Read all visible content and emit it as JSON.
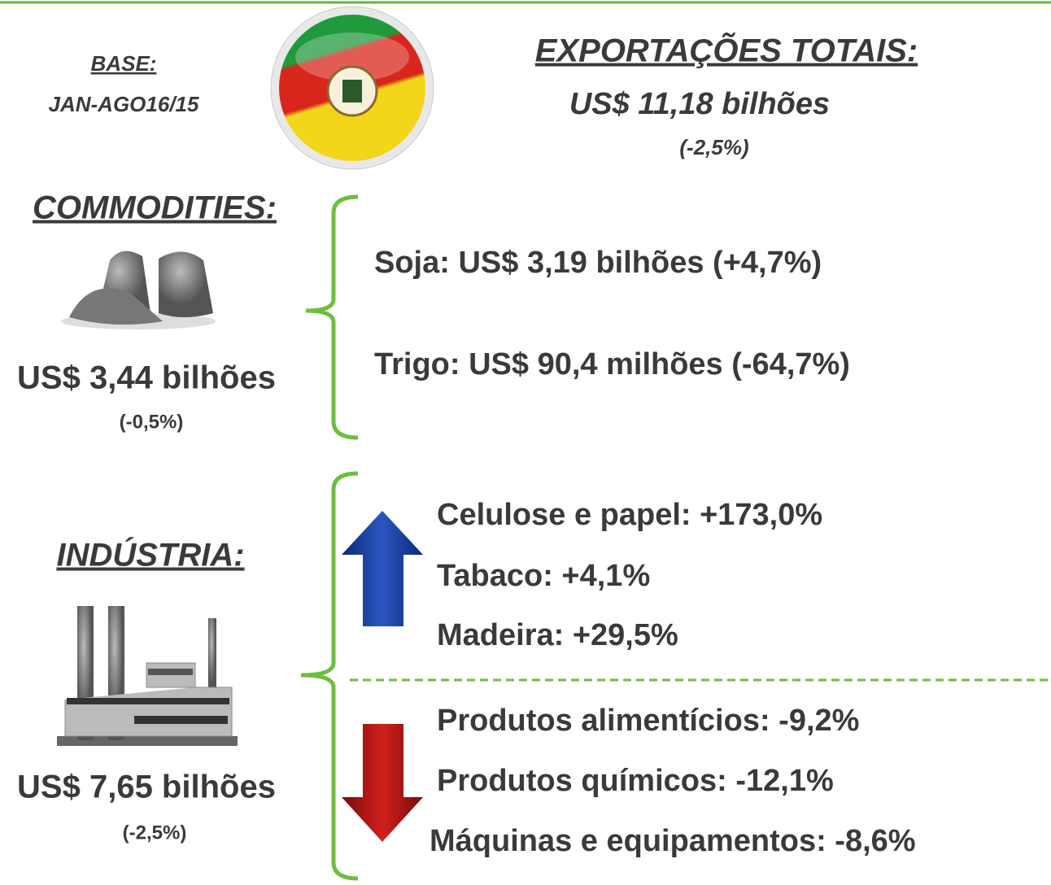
{
  "header": {
    "base_label": "BASE:",
    "base_period": "JAN-AGO16/15",
    "total_title": "EXPORTAÇÕES TOTAIS:",
    "total_value": "US$ 11,18 bilhões",
    "total_change": "(-2,5%)"
  },
  "commodities": {
    "title": "COMMODITIES:",
    "value": "US$ 3,44 bilhões",
    "change": "(-0,5%)",
    "items": [
      "Soja: US$ 3,19 bilhões (+4,7%)",
      "Trigo: US$ 90,4 milhões (-64,7%)"
    ]
  },
  "industria": {
    "title": "INDÚSTRIA:",
    "value": "US$ 7,65 bilhões",
    "change": "(-2,5%)",
    "up_items": [
      "Celulose e papel: +173,0%",
      "Tabaco: +4,1%",
      "Madeira: +29,5%"
    ],
    "down_items": [
      "Produtos alimentícios: -9,2%",
      "Produtos químicos: -12,1%",
      "Máquinas e equipamentos: -8,6%"
    ]
  }
}
